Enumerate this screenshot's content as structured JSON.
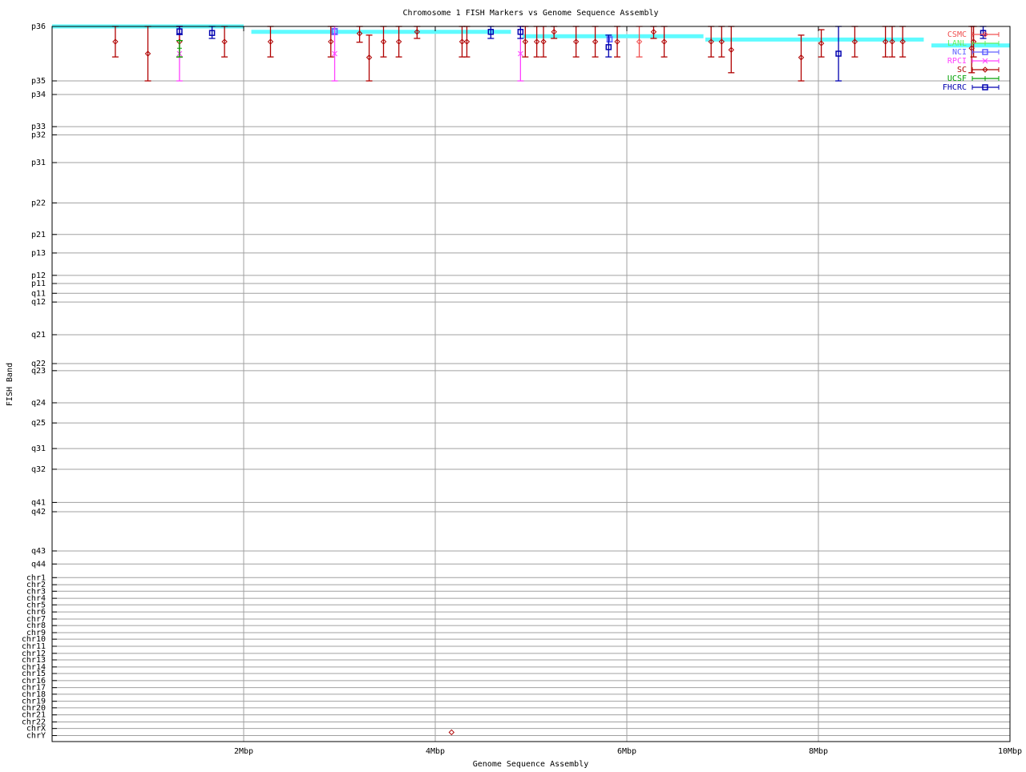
{
  "chart_data": {
    "type": "scatter",
    "title": "Chromosome 1 FISH Markers vs Genome Sequence Assembly",
    "xlabel": "Genome Sequence Assembly",
    "ylabel": "FISH Band",
    "xlim": [
      0,
      10
    ],
    "ylim": [
      0,
      13.13
    ],
    "y_inverted": true,
    "grid": true,
    "legend_placement": "top-right",
    "xticks": [
      {
        "v": 2,
        "label": "2Mbp"
      },
      {
        "v": 4,
        "label": "4Mbp"
      },
      {
        "v": 6,
        "label": "6Mbp"
      },
      {
        "v": 8,
        "label": "8Mbp"
      },
      {
        "v": 10,
        "label": "10Mbp"
      }
    ],
    "yticks": [
      {
        "v": 0,
        "label": "p36"
      },
      {
        "v": 1.0,
        "label": "p35"
      },
      {
        "v": 1.25,
        "label": "p34"
      },
      {
        "v": 1.84,
        "label": "p33"
      },
      {
        "v": 1.99,
        "label": "p32"
      },
      {
        "v": 2.5,
        "label": "p31"
      },
      {
        "v": 3.24,
        "label": "p22"
      },
      {
        "v": 3.82,
        "label": "p21"
      },
      {
        "v": 4.16,
        "label": "p13"
      },
      {
        "v": 4.57,
        "label": "p12"
      },
      {
        "v": 4.72,
        "label": "p11"
      },
      {
        "v": 4.9,
        "label": "q11"
      },
      {
        "v": 5.06,
        "label": "q12"
      },
      {
        "v": 5.66,
        "label": "q21"
      },
      {
        "v": 6.19,
        "label": "q22"
      },
      {
        "v": 6.32,
        "label": "q23"
      },
      {
        "v": 6.91,
        "label": "q24"
      },
      {
        "v": 7.28,
        "label": "q25"
      },
      {
        "v": 7.75,
        "label": "q31"
      },
      {
        "v": 8.13,
        "label": "q32"
      },
      {
        "v": 8.74,
        "label": "q41"
      },
      {
        "v": 8.91,
        "label": "q42"
      },
      {
        "v": 9.63,
        "label": "q43"
      },
      {
        "v": 9.87,
        "label": "q44"
      },
      {
        "v": 10.12,
        "label": "chr1"
      },
      {
        "v": 10.25,
        "label": "chr2"
      },
      {
        "v": 10.37,
        "label": "chr3"
      },
      {
        "v": 10.5,
        "label": "chr4"
      },
      {
        "v": 10.62,
        "label": "chr5"
      },
      {
        "v": 10.75,
        "label": "chr6"
      },
      {
        "v": 10.88,
        "label": "chr7"
      },
      {
        "v": 11.0,
        "label": "chr8"
      },
      {
        "v": 11.13,
        "label": "chr9"
      },
      {
        "v": 11.25,
        "label": "chr10"
      },
      {
        "v": 11.38,
        "label": "chr11"
      },
      {
        "v": 11.51,
        "label": "chr12"
      },
      {
        "v": 11.63,
        "label": "chr13"
      },
      {
        "v": 11.76,
        "label": "chr14"
      },
      {
        "v": 11.88,
        "label": "chr15"
      },
      {
        "v": 12.01,
        "label": "chr16"
      },
      {
        "v": 12.14,
        "label": "chr17"
      },
      {
        "v": 12.26,
        "label": "chr18"
      },
      {
        "v": 12.39,
        "label": "chr19"
      },
      {
        "v": 12.51,
        "label": "chr20"
      },
      {
        "v": 12.64,
        "label": "chr21"
      },
      {
        "v": 12.77,
        "label": "chr22"
      },
      {
        "v": 12.89,
        "label": "chrX"
      },
      {
        "v": 13.02,
        "label": "chrY"
      }
    ],
    "assembly_line": {
      "color": "#5ffbff",
      "segments": [
        {
          "x0": 0,
          "x1": 2.0,
          "y": 0
        },
        {
          "x0": 2.08,
          "x1": 4.79,
          "y": 0.1
        },
        {
          "x0": 4.91,
          "x1": 6.8,
          "y": 0.18
        },
        {
          "x0": 6.82,
          "x1": 9.1,
          "y": 0.24
        },
        {
          "x0": 9.18,
          "x1": 10,
          "y": 0.35
        }
      ]
    },
    "series": [
      {
        "name": "CSMC",
        "color": "#f05050",
        "marker": "diamond",
        "points": [
          {
            "x": 6.13,
            "y": 0.28,
            "ymin": 0,
            "ymax": 0.56
          }
        ]
      },
      {
        "name": "LANL",
        "color": "#60f060",
        "marker": "plus",
        "points": []
      },
      {
        "name": "NCI",
        "color": "#6060ff",
        "marker": "square",
        "points": [
          {
            "x": 2.95,
            "y": 0.09,
            "ymin": 0.04,
            "ymax": 0.15
          },
          {
            "x": 5.82,
            "y": 0.24,
            "ymin": 0.19,
            "ymax": 0.28
          }
        ]
      },
      {
        "name": "RPCI",
        "color": "#ff40ff",
        "marker": "x",
        "points": [
          {
            "x": 1.33,
            "y": 0.5,
            "ymin": 0,
            "ymax": 1.0
          },
          {
            "x": 2.95,
            "y": 0.5,
            "ymin": 0,
            "ymax": 1.0
          },
          {
            "x": 4.89,
            "y": 0.5,
            "ymin": 0,
            "ymax": 1.0
          }
        ]
      },
      {
        "name": "SC",
        "color": "#b00000",
        "marker": "diamond",
        "points": [
          {
            "x": 0.66,
            "y": 0.28,
            "ymin": 0,
            "ymax": 0.56
          },
          {
            "x": 1.0,
            "y": 0.5,
            "ymin": 0,
            "ymax": 1.0
          },
          {
            "x": 1.33,
            "y": 0.28,
            "ymin": 0,
            "ymax": 0.56
          },
          {
            "x": 1.8,
            "y": 0.28,
            "ymin": 0,
            "ymax": 0.56
          },
          {
            "x": 2.28,
            "y": 0.28,
            "ymin": 0,
            "ymax": 0.56
          },
          {
            "x": 2.91,
            "y": 0.28,
            "ymin": 0,
            "ymax": 0.56
          },
          {
            "x": 3.21,
            "y": 0.13,
            "ymin": 0,
            "ymax": 0.29
          },
          {
            "x": 3.31,
            "y": 0.57,
            "ymin": 0.16,
            "ymax": 1.0
          },
          {
            "x": 3.46,
            "y": 0.28,
            "ymin": 0,
            "ymax": 0.56
          },
          {
            "x": 3.62,
            "y": 0.28,
            "ymin": 0,
            "ymax": 0.56
          },
          {
            "x": 3.81,
            "y": 0.1,
            "ymin": 0,
            "ymax": 0.22
          },
          {
            "x": 4.28,
            "y": 0.28,
            "ymin": 0,
            "ymax": 0.56
          },
          {
            "x": 4.33,
            "y": 0.28,
            "ymin": 0,
            "ymax": 0.56
          },
          {
            "x": 4.94,
            "y": 0.28,
            "ymin": 0,
            "ymax": 0.56
          },
          {
            "x": 5.06,
            "y": 0.28,
            "ymin": 0,
            "ymax": 0.56
          },
          {
            "x": 5.13,
            "y": 0.28,
            "ymin": 0,
            "ymax": 0.56
          },
          {
            "x": 5.24,
            "y": 0.1,
            "ymin": 0,
            "ymax": 0.22
          },
          {
            "x": 5.47,
            "y": 0.28,
            "ymin": 0,
            "ymax": 0.56
          },
          {
            "x": 5.67,
            "y": 0.28,
            "ymin": 0,
            "ymax": 0.56
          },
          {
            "x": 5.9,
            "y": 0.28,
            "ymin": 0,
            "ymax": 0.56
          },
          {
            "x": 6.28,
            "y": 0.1,
            "ymin": 0,
            "ymax": 0.22
          },
          {
            "x": 6.39,
            "y": 0.28,
            "ymin": 0,
            "ymax": 0.56
          },
          {
            "x": 6.88,
            "y": 0.28,
            "ymin": 0,
            "ymax": 0.56
          },
          {
            "x": 6.99,
            "y": 0.28,
            "ymin": 0,
            "ymax": 0.56
          },
          {
            "x": 7.09,
            "y": 0.43,
            "ymin": 0,
            "ymax": 0.85
          },
          {
            "x": 7.82,
            "y": 0.57,
            "ymin": 0.16,
            "ymax": 1.0
          },
          {
            "x": 8.03,
            "y": 0.31,
            "ymin": 0.06,
            "ymax": 0.56
          },
          {
            "x": 8.38,
            "y": 0.28,
            "ymin": 0,
            "ymax": 0.56
          },
          {
            "x": 8.7,
            "y": 0.28,
            "ymin": 0,
            "ymax": 0.56
          },
          {
            "x": 8.77,
            "y": 0.28,
            "ymin": 0,
            "ymax": 0.56
          },
          {
            "x": 8.88,
            "y": 0.28,
            "ymin": 0,
            "ymax": 0.56
          },
          {
            "x": 9.6,
            "y": 0.4,
            "ymin": 0,
            "ymax": 0.85
          },
          {
            "x": 9.62,
            "y": 0.28,
            "ymin": 0,
            "ymax": 0.56
          },
          {
            "x": 4.17,
            "y": 12.96,
            "ymin": 12.96,
            "ymax": 12.96
          }
        ]
      },
      {
        "name": "UCSF",
        "color": "#00a000",
        "marker": "plus",
        "points": [
          {
            "x": 1.33,
            "y": 0.4,
            "ymin": 0.26,
            "ymax": 0.56
          }
        ]
      },
      {
        "name": "FHCRC",
        "color": "#0000b0",
        "marker": "square",
        "points": [
          {
            "x": 1.33,
            "y": 0.09,
            "ymin": 0,
            "ymax": 0.15
          },
          {
            "x": 1.67,
            "y": 0.12,
            "ymin": 0,
            "ymax": 0.22
          },
          {
            "x": 4.58,
            "y": 0.1,
            "ymin": 0,
            "ymax": 0.22
          },
          {
            "x": 4.89,
            "y": 0.1,
            "ymin": 0,
            "ymax": 0.22
          },
          {
            "x": 5.81,
            "y": 0.38,
            "ymin": 0.16,
            "ymax": 0.56
          },
          {
            "x": 8.21,
            "y": 0.5,
            "ymin": 0,
            "ymax": 1.0
          },
          {
            "x": 9.72,
            "y": 0.12,
            "ymin": 0,
            "ymax": 0.22
          }
        ]
      }
    ]
  }
}
